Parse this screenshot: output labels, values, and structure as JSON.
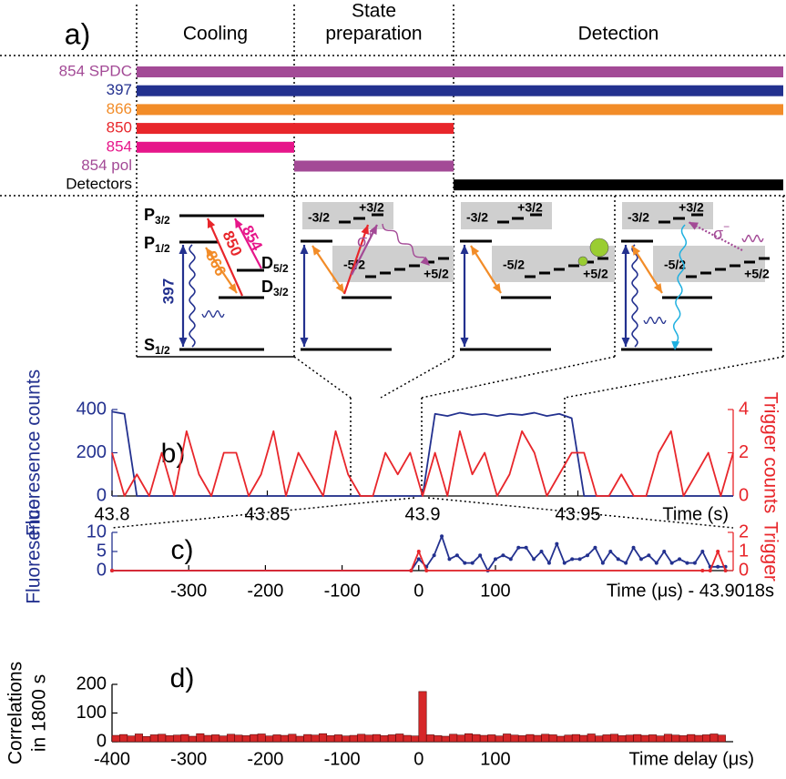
{
  "timing": {
    "label": "a)",
    "phases": [
      {
        "lines": [
          "Cooling"
        ]
      },
      {
        "lines": [
          "State",
          "preparation"
        ]
      },
      {
        "lines": [
          "Detection"
        ]
      }
    ],
    "beams": [
      {
        "name": "854 SPDC",
        "color": "#a34a96",
        "on": [
          true,
          true,
          true
        ]
      },
      {
        "name": "397",
        "color": "#23318f",
        "on": [
          true,
          true,
          true
        ]
      },
      {
        "name": "866",
        "color": "#f28c28",
        "on": [
          true,
          true,
          true
        ]
      },
      {
        "name": "850",
        "color": "#e8262b",
        "on": [
          true,
          true,
          false
        ]
      },
      {
        "name": "854",
        "color": "#e6168a",
        "on": [
          true,
          false,
          false
        ]
      },
      {
        "name": "854 pol",
        "color": "#a34a96",
        "on": [
          false,
          true,
          false
        ]
      },
      {
        "name": "Detectors",
        "color": "#000000",
        "on": [
          false,
          false,
          true
        ]
      }
    ]
  },
  "level_scheme": {
    "levels": {
      "P32": {
        "letter": "P",
        "sub": "3/2"
      },
      "P12": {
        "letter": "P",
        "sub": "1/2"
      },
      "D52": {
        "letter": "D",
        "sub": "5/2"
      },
      "D32": {
        "letter": "D",
        "sub": "3/2"
      },
      "S12": {
        "letter": "S",
        "sub": "1/2"
      }
    },
    "transitions": {
      "blue": "397",
      "orange": "866",
      "red": "850",
      "pink": "854"
    },
    "sublevels": {
      "m32": "-3/2",
      "p32": "+3/2",
      "m52": "-5/2",
      "p52": "+5/2"
    },
    "sigma_plus": {
      "symbol": "σ",
      "sup": "+"
    },
    "sigma_minus": {
      "symbol": "σ",
      "sup": "−"
    }
  },
  "chart_data": [
    {
      "type": "line",
      "label": "b)",
      "xlabel": "Time (s)",
      "ylabel": "Fluoresence counts",
      "y2label": "Trigger counts",
      "x": [
        43.8,
        43.804,
        43.808,
        43.812,
        43.816,
        43.82,
        43.824,
        43.828,
        43.832,
        43.836,
        43.84,
        43.844,
        43.848,
        43.852,
        43.856,
        43.86,
        43.864,
        43.868,
        43.872,
        43.876,
        43.88,
        43.884,
        43.888,
        43.892,
        43.896,
        43.9,
        43.904,
        43.908,
        43.912,
        43.916,
        43.92,
        43.924,
        43.928,
        43.932,
        43.936,
        43.94,
        43.944,
        43.948,
        43.952,
        43.956,
        43.96,
        43.964,
        43.968,
        43.972,
        43.976,
        43.98,
        43.984,
        43.988,
        43.992,
        43.996,
        44.0
      ],
      "xlim": [
        43.8,
        44.0
      ],
      "xticks": [
        43.8,
        43.85,
        43.9,
        43.95
      ],
      "ylim": [
        0,
        400
      ],
      "yticks": [
        0,
        200,
        400
      ],
      "y2lim": [
        0,
        4
      ],
      "y2ticks": [
        0,
        2,
        4
      ],
      "markers": false,
      "series": [
        {
          "color": "#23318f",
          "values": [
            390,
            380,
            0,
            0,
            0,
            0,
            0,
            0,
            0,
            0,
            0,
            0,
            0,
            0,
            0,
            0,
            0,
            0,
            0,
            0,
            0,
            0,
            0,
            0,
            0,
            0,
            380,
            370,
            385,
            375,
            380,
            370,
            380,
            375,
            385,
            370,
            380,
            360,
            0,
            0,
            0,
            0,
            0,
            0,
            0,
            0,
            0,
            0,
            0,
            0,
            0
          ]
        },
        {
          "color": "#e8262b",
          "axis": "y2",
          "values": [
            2,
            0,
            1,
            0,
            2,
            0,
            3,
            1,
            0,
            2,
            2,
            0,
            1,
            3,
            0,
            2,
            1,
            0,
            3,
            1,
            0,
            0,
            2,
            1,
            2,
            0,
            2,
            0,
            3,
            1,
            2,
            0,
            1,
            3,
            2,
            0,
            1,
            2,
            2,
            0,
            0,
            1,
            0,
            0,
            2,
            3,
            0,
            1,
            2,
            0,
            2
          ]
        }
      ]
    },
    {
      "type": "line",
      "label": "c)",
      "xlabel": "Time (μs) - 43.9018s",
      "ylabel": "Fluoresence",
      "y2label": "Trigger",
      "xlim": [
        -400,
        410
      ],
      "xticks": [
        -300,
        -200,
        -100,
        0,
        100
      ],
      "ylim": [
        0,
        10
      ],
      "yticks": [
        0,
        5,
        10
      ],
      "y2lim": [
        0,
        2
      ],
      "y2ticks": [
        0,
        1,
        2
      ],
      "markers": true,
      "series": [
        {
          "color": "#23318f",
          "x": [
            -400,
            -10,
            0,
            10,
            20,
            30,
            40,
            50,
            60,
            70,
            80,
            90,
            100,
            110,
            120,
            130,
            140,
            150,
            160,
            170,
            180,
            190,
            200,
            210,
            220,
            230,
            240,
            250,
            260,
            270,
            280,
            290,
            300,
            310,
            320,
            330,
            340,
            350,
            360,
            370,
            380,
            390,
            400
          ],
          "values": [
            0,
            0,
            3,
            1,
            4,
            9,
            3,
            4,
            2,
            2,
            4,
            0,
            3,
            4,
            3,
            6,
            6,
            3,
            5,
            2,
            7,
            2,
            3,
            3,
            4,
            6,
            2,
            5,
            3,
            2,
            6,
            3,
            4,
            2,
            5,
            2,
            3,
            2,
            2,
            5,
            1,
            1,
            1
          ]
        },
        {
          "color": "#e8262b",
          "axis": "y2",
          "x": [
            -400,
            -10,
            0,
            10,
            370,
            380,
            390,
            400
          ],
          "values": [
            0,
            0,
            1,
            0,
            0,
            0,
            1,
            0
          ]
        }
      ]
    },
    {
      "type": "histogram",
      "label": "d)",
      "xlabel": "Time delay (μs)",
      "ylabel": [
        "Correlations",
        "in 1800 s"
      ],
      "xlim": [
        -400,
        410
      ],
      "xticks": [
        -400,
        -300,
        -200,
        -100,
        0,
        100
      ],
      "ylim": [
        0,
        200
      ],
      "yticks": [
        0,
        100,
        200
      ],
      "color": "#d62728",
      "bins": [
        -400,
        -390,
        -380,
        -370,
        -360,
        -350,
        -340,
        -330,
        -320,
        -310,
        -300,
        -290,
        -280,
        -270,
        -260,
        -250,
        -240,
        -230,
        -220,
        -210,
        -200,
        -190,
        -180,
        -170,
        -160,
        -150,
        -140,
        -130,
        -120,
        -110,
        -100,
        -90,
        -80,
        -70,
        -60,
        -50,
        -40,
        -30,
        -20,
        -10,
        0,
        10,
        20,
        30,
        40,
        50,
        60,
        70,
        80,
        90,
        100,
        110,
        120,
        130,
        140,
        150,
        160,
        170,
        180,
        190,
        200,
        210,
        220,
        230,
        240,
        250,
        260,
        270,
        280,
        290,
        300,
        310,
        320,
        330,
        340,
        350,
        360,
        370,
        380,
        390,
        400
      ],
      "values": [
        22,
        25,
        20,
        27,
        18,
        24,
        26,
        21,
        23,
        25,
        19,
        28,
        22,
        24,
        20,
        26,
        23,
        21,
        25,
        27,
        20,
        24,
        22,
        26,
        19,
        25,
        23,
        28,
        21,
        24,
        20,
        22,
        26,
        23,
        25,
        21,
        24,
        27,
        22,
        20,
        175,
        24,
        21,
        19,
        26,
        23,
        28,
        25,
        22,
        24,
        20,
        27,
        23,
        21,
        25,
        22,
        26,
        24,
        19,
        23,
        25,
        22,
        27,
        20,
        24,
        26,
        21,
        23,
        25,
        22,
        24,
        20,
        26,
        23,
        21,
        25,
        22,
        24,
        27,
        23
      ]
    }
  ]
}
